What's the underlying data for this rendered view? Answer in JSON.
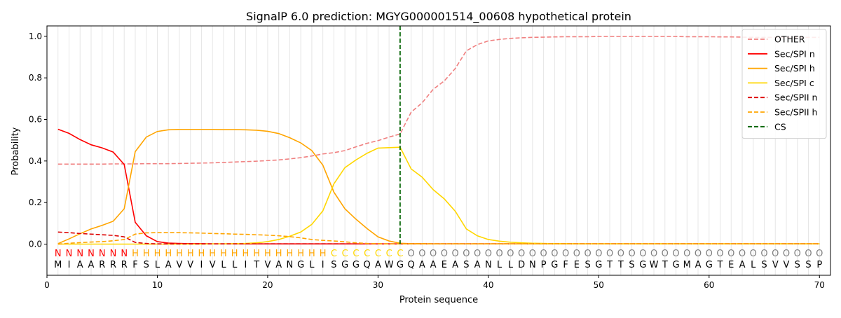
{
  "chart_data": {
    "type": "line",
    "title": "SignalP 6.0 prediction: MGYG000001514_00608 hypothetical protein",
    "xlabel": "Protein sequence",
    "ylabel": "Probability",
    "xlim": [
      0,
      71
    ],
    "ylim": [
      -0.15,
      1.05
    ],
    "x_ticks": [
      0,
      10,
      20,
      30,
      40,
      50,
      60,
      70
    ],
    "y_ticks": [
      0.0,
      0.2,
      0.4,
      0.6,
      0.8,
      1.0
    ],
    "x_tick_labels": [
      "0",
      "10",
      "20",
      "30",
      "40",
      "50",
      "60",
      "70"
    ],
    "y_tick_labels": [
      "0.0",
      "0.2",
      "0.4",
      "0.6",
      "0.8",
      "1.0"
    ],
    "grid": "vertical lines at each residue",
    "legend_position": "top-right",
    "sequence": [
      "M",
      "I",
      "A",
      "A",
      "R",
      "R",
      "R",
      "F",
      "S",
      "L",
      "A",
      "V",
      "V",
      "I",
      "V",
      "L",
      "L",
      "I",
      "T",
      "V",
      "A",
      "N",
      "G",
      "L",
      "I",
      "S",
      "G",
      "G",
      "Q",
      "A",
      "W",
      "G",
      "Q",
      "A",
      "A",
      "E",
      "A",
      "S",
      "A",
      "N",
      "L",
      "L",
      "D",
      "N",
      "P",
      "G",
      "F",
      "E",
      "S",
      "G",
      "T",
      "T",
      "S",
      "G",
      "W",
      "T",
      "G",
      "M",
      "A",
      "G",
      "T",
      "E",
      "A",
      "L",
      "S",
      "V",
      "V",
      "S",
      "S",
      "P"
    ],
    "region_labels": [
      "N",
      "N",
      "N",
      "N",
      "N",
      "N",
      "N",
      "H",
      "H",
      "H",
      "H",
      "H",
      "H",
      "H",
      "H",
      "H",
      "H",
      "H",
      "H",
      "H",
      "H",
      "H",
      "H",
      "H",
      "H",
      "C",
      "C",
      "C",
      "C",
      "C",
      "C",
      "C",
      "O",
      "O",
      "O",
      "O",
      "O",
      "O",
      "O",
      "O",
      "O",
      "O",
      "O",
      "O",
      "O",
      "O",
      "O",
      "O",
      "O",
      "O",
      "O",
      "O",
      "O",
      "O",
      "O",
      "O",
      "O",
      "O",
      "O",
      "O",
      "O",
      "O",
      "O",
      "O",
      "O",
      "O",
      "O",
      "O",
      "O",
      "O"
    ],
    "region_colors": {
      "N": "#ff0000",
      "H": "#ffa500",
      "C": "#ffd700",
      "O": "#808080"
    },
    "cleavage_site": 32,
    "series": [
      {
        "name": "OTHER",
        "color": "#f08080",
        "dash": "dashed",
        "values": [
          0.385,
          0.385,
          0.385,
          0.385,
          0.385,
          0.386,
          0.386,
          0.386,
          0.387,
          0.387,
          0.387,
          0.388,
          0.389,
          0.39,
          0.391,
          0.393,
          0.395,
          0.397,
          0.399,
          0.402,
          0.405,
          0.41,
          0.416,
          0.424,
          0.434,
          0.44,
          0.45,
          0.468,
          0.485,
          0.498,
          0.515,
          0.53,
          0.635,
          0.68,
          0.745,
          0.785,
          0.845,
          0.93,
          0.96,
          0.978,
          0.985,
          0.99,
          0.993,
          0.995,
          0.996,
          0.997,
          0.998,
          0.998,
          0.998,
          0.999,
          0.999,
          0.999,
          0.999,
          0.999,
          0.999,
          0.999,
          0.999,
          0.998,
          0.998,
          0.998,
          0.997,
          0.997,
          0.996,
          0.995,
          0.995,
          0.995,
          0.995,
          0.995,
          0.995,
          0.995
        ]
      },
      {
        "name": "Sec/SPI n",
        "color": "#ff0000",
        "dash": "solid",
        "values": [
          0.553,
          0.533,
          0.503,
          0.478,
          0.463,
          0.443,
          0.383,
          0.105,
          0.04,
          0.012,
          0.005,
          0.003,
          0.002,
          0.002,
          0.001,
          0.001,
          0.001,
          0.001,
          0.001,
          0.001,
          0.001,
          0.001,
          0.001,
          0.001,
          0.001,
          0.001,
          0.001,
          0.001,
          0.001,
          0.001,
          0.001,
          0.001,
          0.001,
          0.001,
          0.001,
          0.001,
          0.001,
          0.001,
          0.001,
          0.001,
          0.001,
          0.001,
          0.001,
          0.001,
          0.001,
          0.001,
          0.001,
          0.001,
          0.001,
          0.001,
          0.001,
          0.001,
          0.001,
          0.001,
          0.001,
          0.001,
          0.001,
          0.001,
          0.001,
          0.001,
          0.001,
          0.001,
          0.001,
          0.001,
          0.001,
          0.001,
          0.001,
          0.001,
          0.001,
          0.001
        ]
      },
      {
        "name": "Sec/SPI h",
        "color": "#ffa500",
        "dash": "solid",
        "values": [
          0.002,
          0.025,
          0.05,
          0.073,
          0.09,
          0.11,
          0.17,
          0.445,
          0.515,
          0.542,
          0.55,
          0.552,
          0.552,
          0.552,
          0.552,
          0.551,
          0.551,
          0.55,
          0.548,
          0.543,
          0.532,
          0.512,
          0.487,
          0.45,
          0.38,
          0.25,
          0.17,
          0.12,
          0.075,
          0.035,
          0.015,
          0.004,
          0.002,
          0.002,
          0.001,
          0.001,
          0.001,
          0.001,
          0.001,
          0.001,
          0.001,
          0.001,
          0.001,
          0.001,
          0.001,
          0.001,
          0.001,
          0.001,
          0.001,
          0.001,
          0.001,
          0.001,
          0.001,
          0.001,
          0.001,
          0.001,
          0.001,
          0.001,
          0.001,
          0.001,
          0.001,
          0.001,
          0.001,
          0.001,
          0.001,
          0.001,
          0.001,
          0.001,
          0.001,
          0.001
        ]
      },
      {
        "name": "Sec/SPI c",
        "color": "#ffd700",
        "dash": "solid",
        "values": [
          0.0,
          0.0,
          0.0,
          0.0,
          0.0,
          0.0,
          0.0,
          0.0,
          0.0,
          0.0,
          0.0,
          0.0,
          0.0,
          0.0,
          0.001,
          0.001,
          0.002,
          0.003,
          0.006,
          0.012,
          0.022,
          0.038,
          0.058,
          0.095,
          0.16,
          0.29,
          0.368,
          0.405,
          0.437,
          0.462,
          0.464,
          0.466,
          0.362,
          0.322,
          0.262,
          0.218,
          0.158,
          0.073,
          0.04,
          0.022,
          0.014,
          0.009,
          0.006,
          0.004,
          0.003,
          0.002,
          0.002,
          0.001,
          0.001,
          0.001,
          0.001,
          0.001,
          0.001,
          0.001,
          0.001,
          0.001,
          0.001,
          0.001,
          0.001,
          0.001,
          0.001,
          0.001,
          0.001,
          0.001,
          0.001,
          0.001,
          0.001,
          0.001,
          0.001,
          0.001
        ]
      },
      {
        "name": "Sec/SPII n",
        "color": "#dd0000",
        "dash": "dashed",
        "values": [
          0.058,
          0.055,
          0.051,
          0.048,
          0.045,
          0.042,
          0.035,
          0.008,
          0.003,
          0.001,
          0.001,
          0.001,
          0.001,
          0.001,
          0.001,
          0.001,
          0.001,
          0.001,
          0.001,
          0.001,
          0.001,
          0.001,
          0.001,
          0.001,
          0.001,
          0.001,
          0.001,
          0.001,
          0.001,
          0.001,
          0.001,
          0.001,
          0.001,
          0.001,
          0.001,
          0.001,
          0.001,
          0.001,
          0.001,
          0.001,
          0.001,
          0.001,
          0.001,
          0.001,
          0.001,
          0.001,
          0.001,
          0.001,
          0.001,
          0.001,
          0.001,
          0.001,
          0.001,
          0.001,
          0.001,
          0.001,
          0.001,
          0.001,
          0.001,
          0.001,
          0.001,
          0.001,
          0.001,
          0.001,
          0.001,
          0.001,
          0.001,
          0.001,
          0.001,
          0.001
        ]
      },
      {
        "name": "Sec/SPII h",
        "color": "#ffa500",
        "dash": "dashed",
        "values": [
          0.0,
          0.004,
          0.007,
          0.01,
          0.012,
          0.016,
          0.022,
          0.048,
          0.054,
          0.055,
          0.055,
          0.055,
          0.054,
          0.053,
          0.051,
          0.05,
          0.048,
          0.047,
          0.045,
          0.043,
          0.04,
          0.036,
          0.03,
          0.022,
          0.018,
          0.015,
          0.011,
          0.006,
          0.003,
          0.002,
          0.001,
          0.001,
          0.001,
          0.001,
          0.001,
          0.001,
          0.001,
          0.001,
          0.001,
          0.001,
          0.001,
          0.001,
          0.001,
          0.001,
          0.001,
          0.001,
          0.001,
          0.001,
          0.001,
          0.001,
          0.001,
          0.001,
          0.001,
          0.001,
          0.001,
          0.001,
          0.001,
          0.001,
          0.001,
          0.001,
          0.001,
          0.001,
          0.001,
          0.001,
          0.001,
          0.001,
          0.001,
          0.001,
          0.001,
          0.001
        ]
      }
    ],
    "cs_legend": {
      "name": "CS",
      "color": "#006400",
      "dash": "dashed"
    }
  }
}
